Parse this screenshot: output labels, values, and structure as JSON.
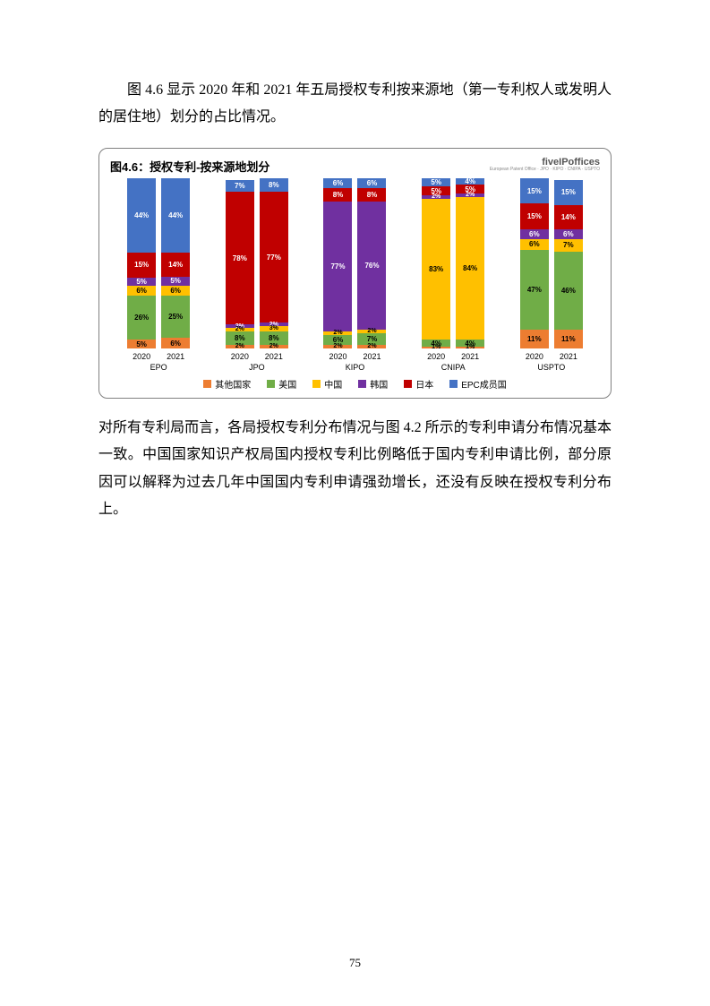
{
  "intro_text": "图 4.6 显示 2020 年和 2021 年五局授权专利按来源地（第一专利权人或发明人的居住地）划分的占比情况。",
  "body_text": "对所有专利局而言，各局授权专利分布情况与图 4.2 所示的专利申请分布情况基本一致。中国国家知识产权局国内授权专利比例略低于国内专利申请比例，部分原因可以解释为过去几年中国国内专利申请强劲增长，还没有反映在授权专利分布上。",
  "page_number": "75",
  "chart": {
    "type": "stacked-bar",
    "title": "图4.6：授权专利-按来源地划分",
    "logo_main": "fiveIPoffices",
    "years": [
      "2020",
      "2021"
    ],
    "series_order": [
      "其他国家",
      "美国",
      "中国",
      "韩国",
      "日本",
      "EPC成员国"
    ],
    "colors": {
      "其他国家": "#ed7d31",
      "美国": "#70ad47",
      "中国": "#ffc000",
      "韩国": "#7030a0",
      "日本": "#c00000",
      "EPC成员国": "#4472c4"
    },
    "text_color_on_dark": "#ffffff",
    "text_color_on_light": "#000000",
    "label_min_pct": 4,
    "offices": [
      {
        "name": "EPO",
        "bars": [
          {
            "其他国家": 5,
            "美国": 26,
            "中国": 6,
            "韩国": 5,
            "日本": 15,
            "EPC成员国": 44
          },
          {
            "其他国家": 6,
            "美国": 25,
            "中国": 6,
            "韩国": 5,
            "日本": 14,
            "EPC成员国": 44
          }
        ]
      },
      {
        "name": "JPO",
        "bars": [
          {
            "其他国家": 2,
            "美国": 8,
            "中国": 2,
            "韩国": 2,
            "日本": 78,
            "EPC成员国": 7
          },
          {
            "其他国家": 2,
            "美国": 8,
            "中国": 3,
            "韩国": 2,
            "日本": 77,
            "EPC成员国": 8
          }
        ]
      },
      {
        "name": "KIPO",
        "bars": [
          {
            "其他国家": 2,
            "美国": 6,
            "中国": 2,
            "韩国": 77,
            "日本": 8,
            "EPC成员国": 6
          },
          {
            "其他国家": 2,
            "美国": 7,
            "中国": 2,
            "韩国": 76,
            "日本": 8,
            "EPC成员国": 6
          }
        ]
      },
      {
        "name": "CNIPA",
        "bars": [
          {
            "其他国家": 1,
            "美国": 4,
            "中国": 83,
            "韩国": 2,
            "日本": 5,
            "EPC成员国": 5
          },
          {
            "其他国家": 1,
            "美国": 4,
            "中国": 84,
            "韩国": 2,
            "日本": 5,
            "EPC成员国": 4
          }
        ]
      },
      {
        "name": "USPTO",
        "bars": [
          {
            "其他国家": 11,
            "美国": 47,
            "中国": 6,
            "韩国": 6,
            "日本": 15,
            "EPC成员国": 15
          },
          {
            "其他国家": 11,
            "美国": 46,
            "中国": 7,
            "韩国": 6,
            "日本": 14,
            "EPC成员国": 15
          }
        ]
      }
    ]
  }
}
